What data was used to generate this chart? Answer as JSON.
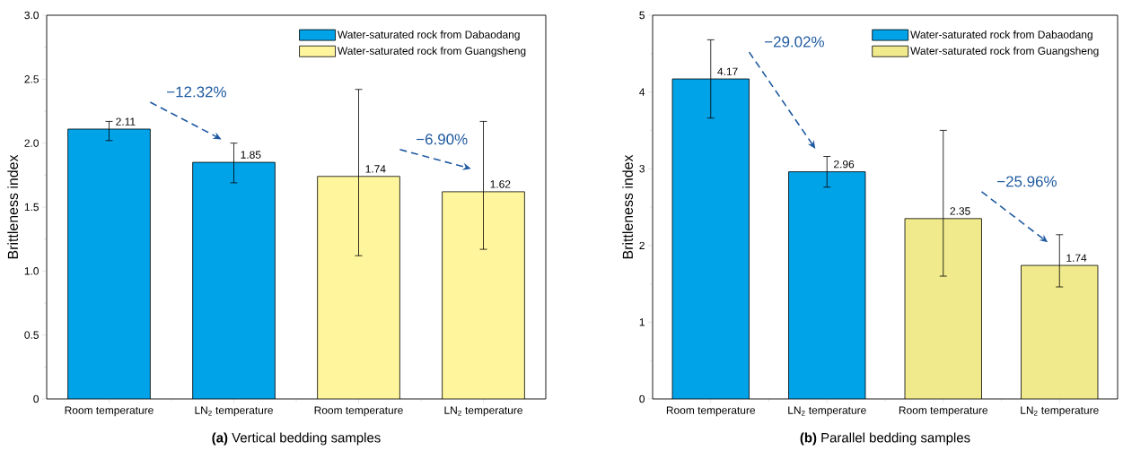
{
  "chart_data": [
    {
      "type": "bar",
      "title": "**(a)** Vertical bedding samples",
      "ylabel": "Brittleness index",
      "categories": [
        "Room temperature",
        "LN$_{2}$ temperature",
        "Room temperature",
        "LN$_{2}$ temperature"
      ],
      "series": [
        {
          "name": "Water-saturated rock from Dabaodang",
          "color": "#00a2e8",
          "values": [
            2.11,
            1.85,
            null,
            null
          ],
          "errors": [
            [
              2.02,
              2.17
            ],
            [
              1.69,
              2.0
            ],
            null,
            null
          ],
          "value_labels": [
            "2.11",
            "1.85",
            null,
            null
          ]
        },
        {
          "name": "Water-saturated rock from Guangsheng",
          "color": "#fff59d",
          "values": [
            null,
            null,
            1.74,
            1.62
          ],
          "errors": [
            null,
            null,
            [
              1.12,
              2.42
            ],
            [
              1.17,
              2.17
            ]
          ],
          "value_labels": [
            null,
            null,
            "1.74",
            "1.62"
          ]
        }
      ],
      "ylim": [
        0,
        3
      ],
      "yticks": [
        0,
        0.5,
        {
          "value": 1,
          "label": "1.0"
        },
        1.5,
        {
          "value": 2,
          "label": "2.0"
        },
        2.5,
        {
          "value": 3,
          "label": "3.0"
        }
      ],
      "annotations": [
        "−12.32%",
        "−6.90%"
      ],
      "legend": "top right"
    },
    {
      "type": "bar",
      "title": "**(b)** Parallel bedding samples",
      "ylabel": "Brittleness index",
      "categories": [
        "Room temperature",
        "LN$_{2}$ temperature",
        "Room temperature",
        "LN$_{2}$ temperature"
      ],
      "series": [
        {
          "name": "Water-saturated rock from Dabaodang",
          "color": "#00a2e8",
          "values": [
            4.17,
            2.96,
            null,
            null
          ],
          "errors": [
            [
              3.66,
              4.68
            ],
            [
              2.76,
              3.16
            ],
            null,
            null
          ],
          "value_labels": [
            "4.17",
            "2.96",
            null,
            null
          ]
        },
        {
          "name": "Water-saturated rock from Guangsheng",
          "color": "#f0ea8c",
          "values": [
            null,
            null,
            2.35,
            1.74
          ],
          "errors": [
            null,
            null,
            [
              1.6,
              3.5
            ],
            [
              1.46,
              2.14
            ]
          ],
          "value_labels": [
            null,
            null,
            "2.35",
            "1.74"
          ]
        }
      ],
      "ylim": [
        0,
        5
      ],
      "yticks": [
        0,
        1,
        2,
        3,
        4,
        5
      ],
      "annotations": [
        "−29.02%",
        "−25.96%"
      ],
      "legend": "top right"
    }
  ]
}
